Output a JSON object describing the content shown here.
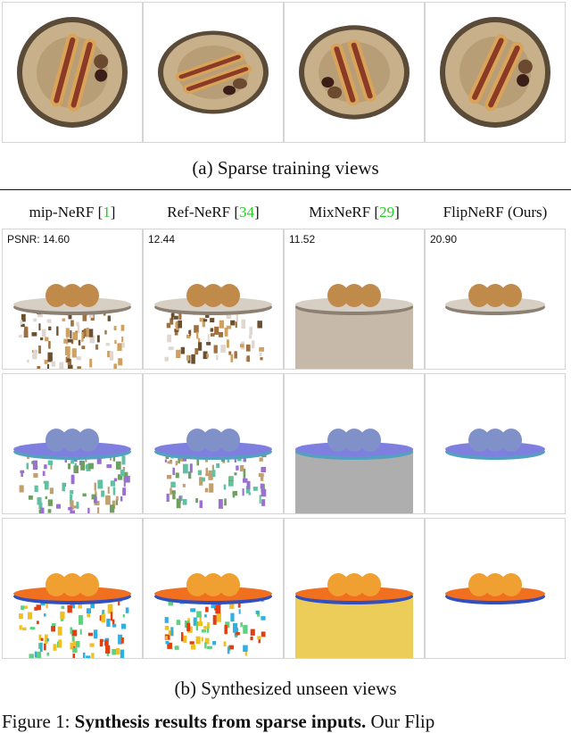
{
  "top_caption": "(a) Sparse training views",
  "columns": [
    {
      "prefix": "mip-NeRF [",
      "ref": "1",
      "suffix": "]",
      "psnr": "PSNR: 14.60"
    },
    {
      "prefix": "Ref-NeRF [",
      "ref": "34",
      "suffix": "]",
      "psnr": "12.44"
    },
    {
      "prefix": "MixNeRF [",
      "ref": "29",
      "suffix": "]",
      "psnr": "11.52"
    },
    {
      "prefix": "FlipNeRF (Ours)",
      "psnr": "20.90"
    }
  ],
  "bottom_caption": "(b) Synthesized unseen views",
  "figure_caption": {
    "label": "Figure 1: ",
    "bold": "Synthesis results from sparse inputs.",
    "text": " Our Flip"
  }
}
